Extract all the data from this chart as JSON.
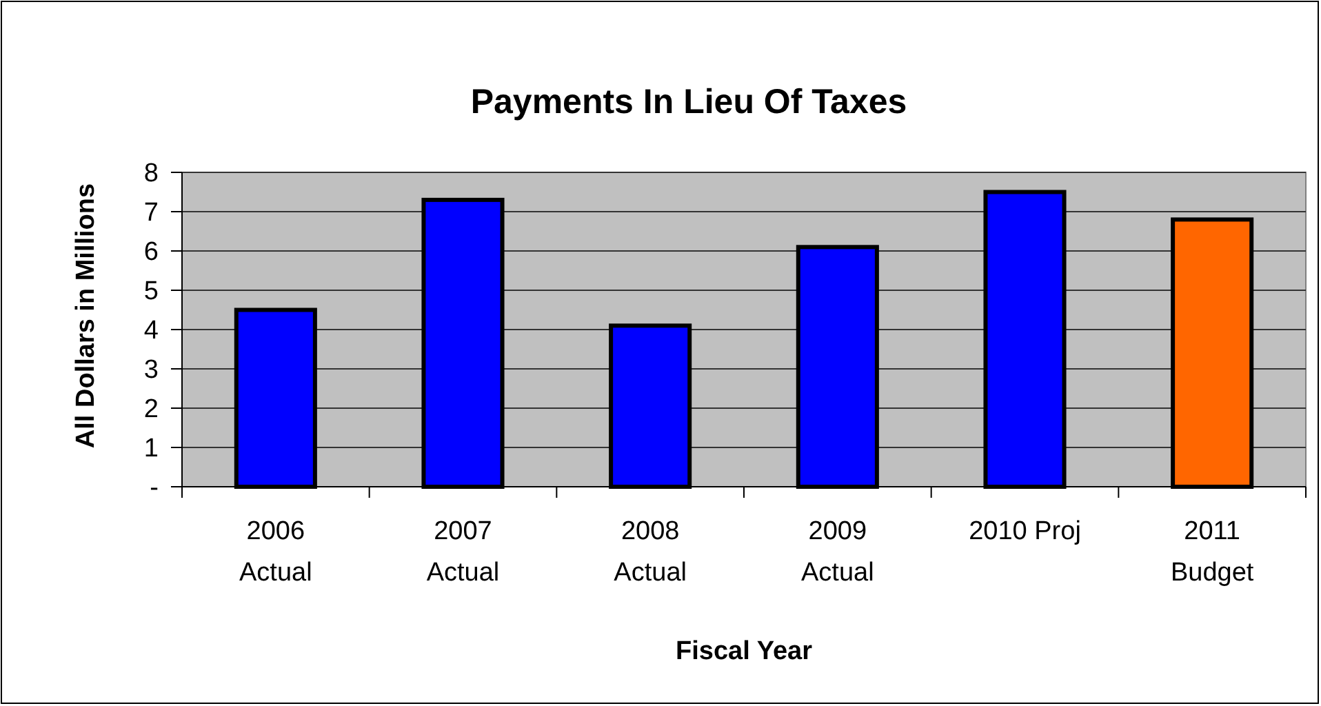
{
  "chart_data": {
    "type": "bar",
    "title": "Payments  In Lieu Of Taxes",
    "xlabel": "Fiscal Year",
    "ylabel": "All Dollars in Millions",
    "categories": [
      "2006\nActual",
      "2007\nActual",
      "2008\nActual",
      "2009\nActual",
      "2010 Proj",
      "2011\nBudget"
    ],
    "values": [
      4.5,
      7.3,
      4.1,
      6.1,
      7.5,
      6.8
    ],
    "colors": [
      "#0000ff",
      "#0000ff",
      "#0000ff",
      "#0000ff",
      "#0000ff",
      "#ff6600"
    ],
    "ylim": [
      0,
      8
    ],
    "yticks": [
      {
        "value": 0,
        "label": "-"
      },
      1,
      2,
      3,
      4,
      5,
      6,
      7,
      8
    ],
    "grid": "y"
  }
}
